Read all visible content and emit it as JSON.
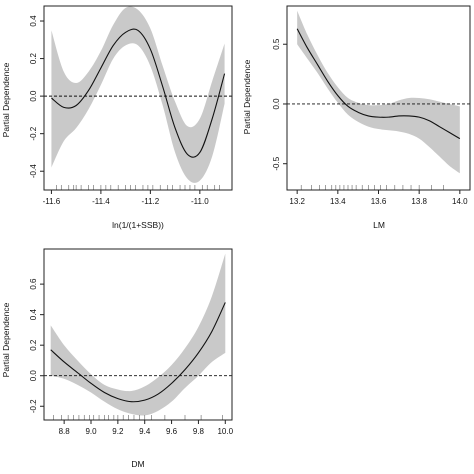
{
  "chart_data": [
    {
      "type": "line",
      "xlabel": "ln(1/(1+SSB))",
      "ylabel": "Partial Dependence",
      "xlim": [
        -11.63,
        -10.87
      ],
      "ylim": [
        -0.5,
        0.48
      ],
      "x_ticks": [
        -11.6,
        -11.4,
        -11.2,
        -11.0
      ],
      "x_tick_labels": [
        "-11.6",
        "-11.4",
        "-11.2",
        "-11.0"
      ],
      "y_ticks": [
        -0.4,
        -0.2,
        0.0,
        0.2,
        0.4
      ],
      "y_tick_labels": [
        "-0.4",
        "-0.2",
        "0.0",
        "0.2",
        "0.4"
      ],
      "reference_line_y": 0,
      "series": [
        {
          "x": [
            -11.6,
            -11.55,
            -11.5,
            -11.45,
            -11.4,
            -11.35,
            -11.3,
            -11.25,
            -11.2,
            -11.15,
            -11.1,
            -11.05,
            -11.0,
            -10.95,
            -10.9
          ],
          "y": [
            -0.01,
            -0.06,
            -0.05,
            0.03,
            0.15,
            0.27,
            0.34,
            0.35,
            0.25,
            0.05,
            -0.17,
            -0.31,
            -0.3,
            -0.12,
            0.12
          ],
          "lower": [
            -0.38,
            -0.24,
            -0.17,
            -0.07,
            0.06,
            0.2,
            0.27,
            0.27,
            0.16,
            -0.05,
            -0.3,
            -0.44,
            -0.45,
            -0.32,
            -0.04
          ],
          "upper": [
            0.35,
            0.13,
            0.07,
            0.13,
            0.24,
            0.38,
            0.47,
            0.46,
            0.36,
            0.16,
            -0.03,
            -0.16,
            -0.12,
            0.08,
            0.28
          ]
        }
      ],
      "rug_x": [
        -11.58,
        -11.56,
        -11.53,
        -11.51,
        -11.5,
        -11.48,
        -11.45,
        -11.43,
        -11.4,
        -11.38,
        -11.36,
        -11.33,
        -11.3,
        -11.28,
        -11.26,
        -11.23,
        -11.21,
        -11.19,
        -11.16,
        -11.13,
        -11.11,
        -11.08,
        -11.06,
        -11.04,
        -11.02,
        -10.99,
        -10.97,
        -10.94,
        -10.92
      ]
    },
    {
      "type": "line",
      "xlabel": "LM",
      "ylabel": "Partial Dependence",
      "xlim": [
        13.15,
        14.05
      ],
      "ylim": [
        -0.72,
        0.82
      ],
      "x_ticks": [
        13.2,
        13.4,
        13.6,
        13.8,
        14.0
      ],
      "x_tick_labels": [
        "13.2",
        "13.4",
        "13.6",
        "13.8",
        "14.0"
      ],
      "y_ticks": [
        -0.5,
        0.0,
        0.5
      ],
      "y_tick_labels": [
        "-0.5",
        "0.0",
        "0.5"
      ],
      "reference_line_y": 0,
      "series": [
        {
          "x": [
            13.2,
            13.25,
            13.3,
            13.35,
            13.4,
            13.45,
            13.5,
            13.55,
            13.6,
            13.65,
            13.7,
            13.75,
            13.8,
            13.85,
            13.9,
            13.95,
            14.0
          ],
          "y": [
            0.63,
            0.47,
            0.33,
            0.19,
            0.07,
            -0.02,
            -0.07,
            -0.1,
            -0.11,
            -0.11,
            -0.1,
            -0.1,
            -0.11,
            -0.14,
            -0.19,
            -0.24,
            -0.29
          ],
          "lower": [
            0.5,
            0.38,
            0.26,
            0.13,
            0.01,
            -0.09,
            -0.15,
            -0.19,
            -0.21,
            -0.22,
            -0.23,
            -0.25,
            -0.29,
            -0.36,
            -0.44,
            -0.52,
            -0.58
          ],
          "upper": [
            0.78,
            0.58,
            0.41,
            0.26,
            0.14,
            0.05,
            0.01,
            -0.01,
            -0.01,
            0.0,
            0.03,
            0.05,
            0.05,
            0.04,
            0.02,
            0.0,
            -0.02
          ]
        }
      ],
      "rug_x": [
        13.22,
        13.27,
        13.31,
        13.34,
        13.37,
        13.39,
        13.41,
        13.43,
        13.45,
        13.47,
        13.49,
        13.52,
        13.55,
        13.58,
        13.61,
        13.64,
        13.68,
        13.72,
        13.76,
        13.8,
        13.86,
        13.92
      ]
    },
    {
      "type": "line",
      "xlabel": "DM",
      "ylabel": "Partial Dependence",
      "xlim": [
        8.65,
        10.05
      ],
      "ylim": [
        -0.29,
        0.83
      ],
      "x_ticks": [
        8.8,
        9.0,
        9.2,
        9.4,
        9.6,
        9.8,
        10.0
      ],
      "x_tick_labels": [
        "8.8",
        "9.0",
        "9.2",
        "9.4",
        "9.6",
        "9.8",
        "10.0"
      ],
      "y_ticks": [
        -0.2,
        0.0,
        0.2,
        0.4,
        0.6
      ],
      "y_tick_labels": [
        "-0.2",
        "0.0",
        "0.2",
        "0.4",
        "0.6"
      ],
      "reference_line_y": 0,
      "series": [
        {
          "x": [
            8.7,
            8.8,
            8.9,
            9.0,
            9.1,
            9.2,
            9.3,
            9.4,
            9.5,
            9.6,
            9.7,
            9.8,
            9.9,
            10.0
          ],
          "y": [
            0.17,
            0.09,
            0.02,
            -0.05,
            -0.11,
            -0.15,
            -0.17,
            -0.16,
            -0.12,
            -0.05,
            0.04,
            0.15,
            0.29,
            0.48
          ],
          "lower": [
            0.0,
            -0.02,
            -0.06,
            -0.11,
            -0.17,
            -0.22,
            -0.25,
            -0.26,
            -0.23,
            -0.17,
            -0.08,
            0.0,
            0.09,
            0.15
          ],
          "upper": [
            0.33,
            0.2,
            0.1,
            0.01,
            -0.06,
            -0.09,
            -0.1,
            -0.07,
            -0.01,
            0.07,
            0.18,
            0.32,
            0.52,
            0.8
          ]
        }
      ],
      "rug_x": [
        8.72,
        8.78,
        8.83,
        8.87,
        8.91,
        8.95,
        8.99,
        9.02,
        9.06,
        9.1,
        9.13,
        9.17,
        9.2,
        9.24,
        9.28,
        9.32,
        9.36,
        9.4,
        9.45,
        9.55,
        9.7,
        9.82,
        9.98
      ]
    }
  ]
}
